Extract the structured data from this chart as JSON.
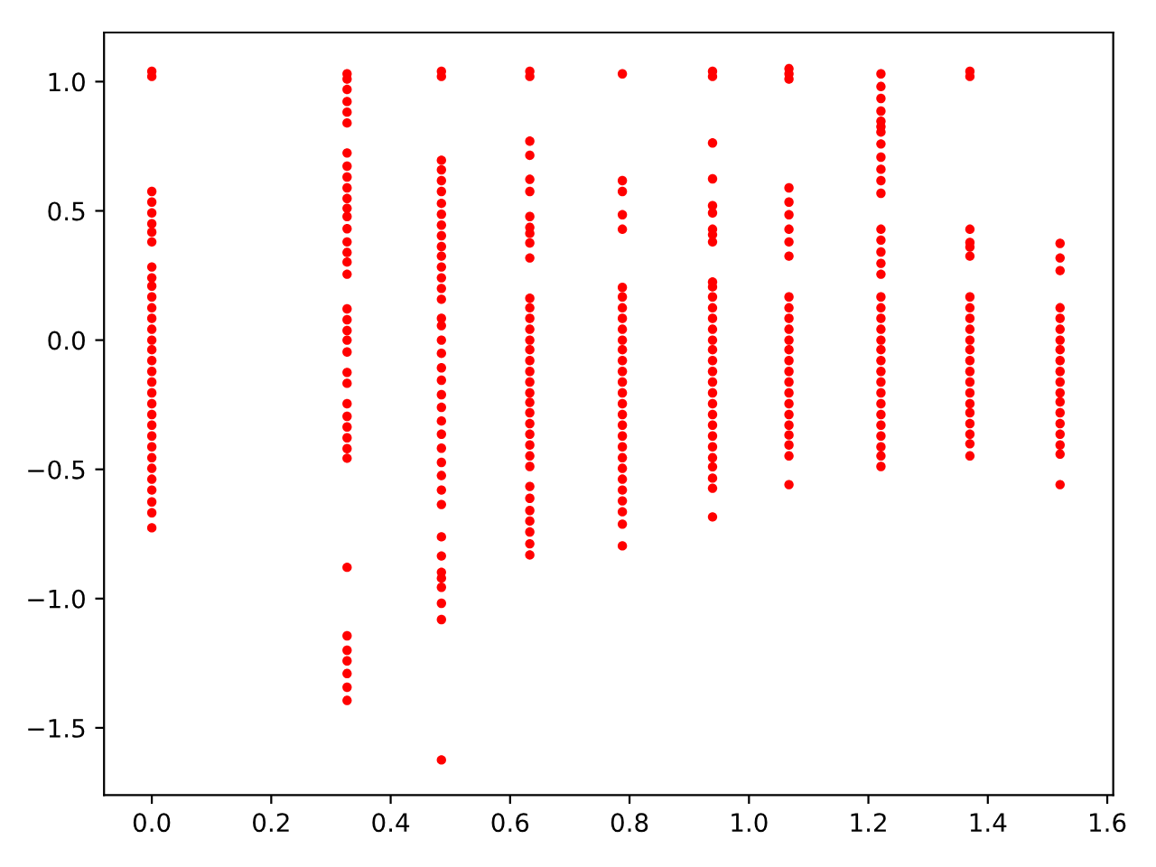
{
  "chart_data": {
    "type": "scatter",
    "marker": "circle",
    "grid": false,
    "xlim": [
      -0.08,
      1.61
    ],
    "ylim": [
      -1.76,
      1.19
    ],
    "xticks": [
      {
        "value": 0,
        "label": "0.0"
      },
      {
        "value": 0.2,
        "label": "0.2"
      },
      {
        "value": 0.4,
        "label": "0.4"
      },
      {
        "value": 0.6,
        "label": "0.6"
      },
      {
        "value": 0.8,
        "label": "0.8"
      },
      {
        "value": 1.0,
        "label": "1.0"
      },
      {
        "value": 1.2,
        "label": "1.2"
      },
      {
        "value": 1.4,
        "label": "1.4"
      },
      {
        "value": 1.6,
        "label": "1.6"
      }
    ],
    "yticks": [
      {
        "value": -1.5,
        "label": "−1.5"
      },
      {
        "value": -1.0,
        "label": "−1.0"
      },
      {
        "value": -0.5,
        "label": "−0.5"
      },
      {
        "value": 0,
        "label": "0.0"
      },
      {
        "value": 0.5,
        "label": "0.5"
      },
      {
        "value": 1.0,
        "label": "1.0"
      }
    ],
    "series": [
      {
        "color": "#ff0000",
        "x": [
          0,
          0,
          0,
          0,
          0,
          0,
          0,
          0,
          0,
          0,
          0,
          0,
          0,
          0,
          0,
          0,
          0,
          0,
          0,
          0,
          0,
          0,
          0,
          0,
          0,
          0,
          0,
          0,
          0,
          0,
          0,
          0,
          0
        ],
        "values": [
          1.04,
          1.02,
          0.575,
          0.534,
          0.492,
          0.45,
          0.418,
          0.38,
          0.283,
          0.241,
          0.209,
          0.167,
          0.125,
          0.084,
          0.042,
          0,
          -0.037,
          -0.079,
          -0.121,
          -0.162,
          -0.204,
          -0.246,
          -0.288,
          -0.329,
          -0.371,
          -0.413,
          -0.455,
          -0.496,
          -0.538,
          -0.58,
          -0.626,
          -0.668,
          -0.726
        ]
      },
      {
        "color": "#ff0000",
        "x": [
          0.327,
          0.327,
          0.327,
          0.327,
          0.327,
          0.327,
          0.327,
          0.327,
          0.327,
          0.327,
          0.327,
          0.327,
          0.327,
          0.327,
          0.327,
          0.327,
          0.327,
          0.327,
          0.327,
          0.327,
          0.327,
          0.327,
          0.327,
          0.327,
          0.327,
          0.327,
          0.327,
          0.327,
          0.327,
          0.327,
          0.327,
          0.327,
          0.327,
          0.327,
          0.327,
          0.327,
          0.327,
          0.327
        ],
        "values": [
          1.03,
          1.01,
          0.97,
          0.923,
          0.882,
          0.84,
          0.724,
          0.673,
          0.631,
          0.589,
          0.548,
          0.51,
          0.478,
          0.431,
          0.38,
          0.339,
          0.302,
          0.255,
          0.121,
          0.079,
          0.037,
          0,
          -0.046,
          -0.125,
          -0.167,
          -0.246,
          -0.295,
          -0.336,
          -0.378,
          -0.42,
          -0.457,
          -0.879,
          -1.144,
          -1.2,
          -1.241,
          -1.29,
          -1.343,
          -1.394
        ]
      },
      {
        "color": "#ff0000",
        "x": [
          0.485,
          0.485,
          0.485,
          0.485,
          0.485,
          0.485,
          0.485,
          0.485,
          0.485,
          0.485,
          0.485,
          0.485,
          0.485,
          0.485,
          0.485,
          0.485,
          0.485,
          0.485,
          0.485,
          0.485,
          0.485,
          0.485,
          0.485,
          0.485,
          0.485,
          0.485,
          0.485,
          0.485,
          0.485,
          0.485,
          0.485,
          0.485,
          0.485,
          0.485,
          0.485,
          0.485,
          0.485,
          0.485,
          0.485
        ],
        "values": [
          1.04,
          1.02,
          0.696,
          0.659,
          0.617,
          0.575,
          0.529,
          0.487,
          0.445,
          0.404,
          0.362,
          0.325,
          0.283,
          0.241,
          0.2,
          0.158,
          0.084,
          0.056,
          0,
          -0.051,
          -0.107,
          -0.155,
          -0.211,
          -0.26,
          -0.313,
          -0.364,
          -0.418,
          -0.473,
          -0.524,
          -0.58,
          -0.636,
          -0.761,
          -0.835,
          -0.898,
          -0.921,
          -0.956,
          -1.018,
          -1.081,
          -1.624
        ]
      },
      {
        "color": "#ff0000",
        "x": [
          0.633,
          0.633,
          0.633,
          0.633,
          0.633,
          0.633,
          0.633,
          0.633,
          0.633,
          0.633,
          0.633,
          0.633,
          0.633,
          0.633,
          0.633,
          0.633,
          0.633,
          0.633,
          0.633,
          0.633,
          0.633,
          0.633,
          0.633,
          0.633,
          0.633,
          0.633,
          0.633,
          0.633,
          0.633,
          0.633,
          0.633,
          0.633,
          0.633,
          0.633,
          0.633
        ],
        "values": [
          1.04,
          1.02,
          0.77,
          0.715,
          0.622,
          0.575,
          0.478,
          0.436,
          0.413,
          0.376,
          0.318,
          0.162,
          0.125,
          0.084,
          0.042,
          0,
          -0.037,
          -0.079,
          -0.121,
          -0.162,
          -0.204,
          -0.241,
          -0.281,
          -0.323,
          -0.364,
          -0.406,
          -0.448,
          -0.489,
          -0.566,
          -0.612,
          -0.659,
          -0.7,
          -0.742,
          -0.788,
          -0.831
        ]
      },
      {
        "color": "#ff0000",
        "x": [
          0.788,
          0.788,
          0.788,
          0.788,
          0.788,
          0.788,
          0.788,
          0.788,
          0.788,
          0.788,
          0.788,
          0.788,
          0.788,
          0.788,
          0.788,
          0.788,
          0.788,
          0.788,
          0.788,
          0.788,
          0.788,
          0.788,
          0.788,
          0.788,
          0.788,
          0.788,
          0.788,
          0.788,
          0.788
        ],
        "values": [
          1.03,
          0.617,
          0.575,
          0.485,
          0.429,
          0.204,
          0.167,
          0.125,
          0.084,
          0.042,
          0,
          -0.037,
          -0.079,
          -0.121,
          -0.162,
          -0.204,
          -0.246,
          -0.288,
          -0.329,
          -0.371,
          -0.413,
          -0.455,
          -0.496,
          -0.538,
          -0.58,
          -0.622,
          -0.664,
          -0.712,
          -0.796
        ]
      },
      {
        "color": "#ff0000",
        "x": [
          0.939,
          0.939,
          0.939,
          0.939,
          0.939,
          0.939,
          0.939,
          0.939,
          0.939,
          0.939,
          0.939,
          0.939,
          0.939,
          0.939,
          0.939,
          0.939,
          0.939,
          0.939,
          0.939,
          0.939,
          0.939,
          0.939,
          0.939,
          0.939,
          0.939,
          0.939,
          0.939,
          0.939,
          0.939,
          0.939,
          0.939
        ],
        "values": [
          1.04,
          1.02,
          0.763,
          0.624,
          0.52,
          0.492,
          0.429,
          0.408,
          0.38,
          0.225,
          0.206,
          0.167,
          0.125,
          0.084,
          0.042,
          0,
          -0.037,
          -0.079,
          -0.121,
          -0.162,
          -0.204,
          -0.246,
          -0.288,
          -0.329,
          -0.371,
          -0.413,
          -0.455,
          -0.49,
          -0.534,
          -0.573,
          -0.684
        ]
      },
      {
        "color": "#ff0000",
        "x": [
          1.067,
          1.067,
          1.067,
          1.067,
          1.067,
          1.067,
          1.067,
          1.067,
          1.067,
          1.067,
          1.067,
          1.067,
          1.067,
          1.067,
          1.067,
          1.067,
          1.067,
          1.067,
          1.067,
          1.067,
          1.067,
          1.067,
          1.067,
          1.067,
          1.067,
          1.067
        ],
        "values": [
          1.05,
          1.03,
          1.01,
          0.589,
          0.534,
          0.485,
          0.429,
          0.38,
          0.325,
          0.167,
          0.125,
          0.084,
          0.042,
          0,
          -0.037,
          -0.079,
          -0.121,
          -0.162,
          -0.204,
          -0.246,
          -0.288,
          -0.329,
          -0.367,
          -0.406,
          -0.448,
          -0.559
        ]
      },
      {
        "color": "#ff0000",
        "x": [
          1.221,
          1.221,
          1.221,
          1.221,
          1.221,
          1.221,
          1.221,
          1.221,
          1.221,
          1.221,
          1.221,
          1.221,
          1.221,
          1.221,
          1.221,
          1.221,
          1.221,
          1.221,
          1.221,
          1.221,
          1.221,
          1.221,
          1.221,
          1.221,
          1.221,
          1.221,
          1.221,
          1.221,
          1.221,
          1.221,
          1.221,
          1.221,
          1.221,
          1.221
        ],
        "values": [
          1.03,
          0.981,
          0.935,
          0.886,
          0.847,
          0.826,
          0.805,
          0.759,
          0.708,
          0.661,
          0.617,
          0.568,
          0.429,
          0.387,
          0.341,
          0.297,
          0.255,
          0.167,
          0.125,
          0.084,
          0.042,
          0,
          -0.037,
          -0.079,
          -0.121,
          -0.162,
          -0.204,
          -0.246,
          -0.288,
          -0.329,
          -0.371,
          -0.413,
          -0.448,
          -0.489
        ]
      },
      {
        "color": "#ff0000",
        "x": [
          1.37,
          1.37,
          1.37,
          1.37,
          1.37,
          1.37,
          1.37,
          1.37,
          1.37,
          1.37,
          1.37,
          1.37,
          1.37,
          1.37,
          1.37,
          1.37,
          1.37,
          1.37,
          1.37,
          1.37,
          1.37,
          1.37
        ],
        "values": [
          1.04,
          1.02,
          0.429,
          0.378,
          0.36,
          0.325,
          0.167,
          0.125,
          0.084,
          0.042,
          0,
          -0.037,
          -0.079,
          -0.121,
          -0.162,
          -0.204,
          -0.246,
          -0.281,
          -0.323,
          -0.364,
          -0.401,
          -0.448
        ]
      },
      {
        "color": "#ff0000",
        "x": [
          1.521,
          1.521,
          1.521,
          1.521,
          1.521,
          1.521,
          1.521,
          1.521,
          1.521,
          1.521,
          1.521,
          1.521,
          1.521,
          1.521,
          1.521,
          1.521,
          1.521,
          1.521,
          1.521
        ],
        "values": [
          0.374,
          0.318,
          0.269,
          0.125,
          0.084,
          0.042,
          0,
          -0.037,
          -0.079,
          -0.121,
          -0.162,
          -0.204,
          -0.239,
          -0.281,
          -0.323,
          -0.364,
          -0.406,
          -0.441,
          -0.559
        ]
      }
    ]
  }
}
